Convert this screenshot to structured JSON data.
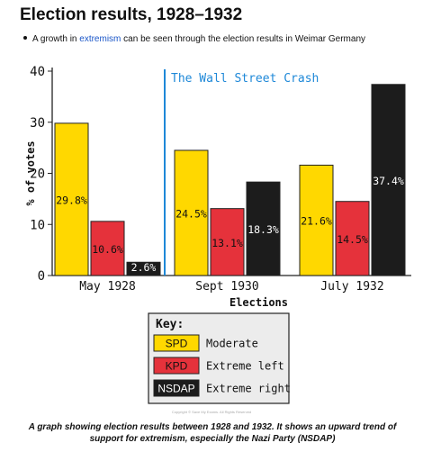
{
  "page": {
    "title": "Election results, 1928–1932",
    "bullet_before": "A growth in ",
    "bullet_link": "extremism",
    "bullet_after": " can be seen through the election results in Weimar Germany",
    "caption": "A graph showing election results between 1928 and 1932. It shows an upward trend of support for extremism, especially the Nazi Party (NSDAP)",
    "copyright": "Copyright © Save My Exams. All Rights Reserved",
    "link_color": "#1a56c8"
  },
  "chart_data": {
    "type": "bar",
    "title": "",
    "xlabel": "Elections",
    "ylabel": "% of votes",
    "ylim": [
      0,
      40
    ],
    "yticks": [
      0,
      10,
      20,
      30,
      40
    ],
    "grid": false,
    "categories": [
      "May 1928",
      "Sept 1930",
      "July 1932"
    ],
    "series": [
      {
        "name": "SPD",
        "color": "#ffd800",
        "values": [
          29.8,
          24.5,
          21.6
        ],
        "labels": [
          "29.8%",
          "24.5%",
          "21.6%"
        ]
      },
      {
        "name": "KPD",
        "color": "#e5323b",
        "values": [
          10.6,
          13.1,
          14.5
        ],
        "labels": [
          "10.6%",
          "13.1%",
          "14.5%"
        ]
      },
      {
        "name": "NSDAP",
        "color": "#1c1c1c",
        "values": [
          2.6,
          18.3,
          37.4
        ],
        "labels": [
          "2.6%",
          "18.3%",
          "37.4%"
        ]
      }
    ],
    "annotation": {
      "text": "The Wall Street Crash",
      "color": "#1e88d8",
      "position": "between May 1928 and Sept 1930"
    },
    "legend": {
      "title": "Key:",
      "placement": "bottom-center",
      "items": [
        {
          "key": "SPD",
          "label": "Moderate"
        },
        {
          "key": "KPD",
          "label": "Extreme left"
        },
        {
          "key": "NSDAP",
          "label": "Extreme right"
        }
      ]
    }
  }
}
